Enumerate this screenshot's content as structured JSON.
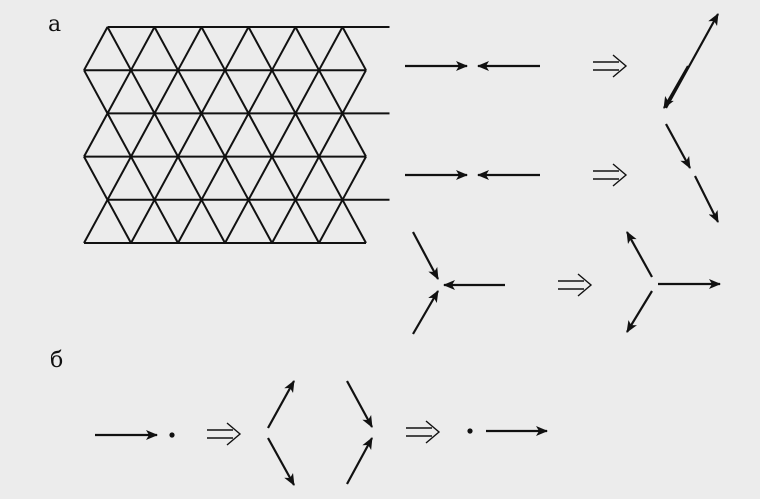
{
  "panel_labels": {
    "a": "а",
    "b": "б"
  },
  "colors": {
    "background": "#ececec",
    "ink": "#111111"
  },
  "lattice": {
    "type": "triangular",
    "rows": 5,
    "columns": 6
  },
  "implies_symbol": "double-arrow-implies"
}
